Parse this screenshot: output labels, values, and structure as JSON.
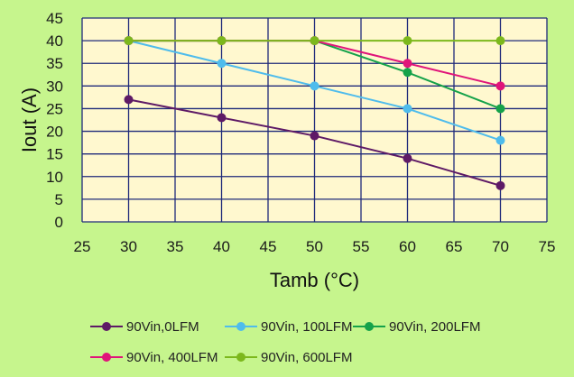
{
  "colors": {
    "background": "#c6f58d",
    "plot_area": "#fff8cf",
    "grid": "#1f2a7a"
  },
  "chart_data": {
    "type": "line",
    "xlabel": "Tamb (°C)",
    "ylabel": "Iout (A)",
    "xlim": [
      25,
      75
    ],
    "ylim": [
      0,
      45
    ],
    "xticks": [
      25,
      30,
      35,
      40,
      45,
      50,
      55,
      60,
      65,
      70,
      75
    ],
    "yticks": [
      0,
      5,
      10,
      15,
      20,
      25,
      30,
      35,
      40,
      45
    ],
    "grid": true,
    "legend_position": "bottom",
    "series": [
      {
        "name": "90Vin,0LFM",
        "color": "#5e1a66",
        "x": [
          30,
          40,
          50,
          60,
          70
        ],
        "y": [
          27,
          23,
          19,
          14,
          8
        ]
      },
      {
        "name": "90Vin, 100LFM",
        "color": "#4fbcec",
        "x": [
          30,
          40,
          50,
          60,
          70
        ],
        "y": [
          40,
          35,
          30,
          25,
          18
        ]
      },
      {
        "name": "90Vin, 200LFM",
        "color": "#15a24a",
        "x": [
          30,
          40,
          50,
          60,
          70
        ],
        "y": [
          40,
          40,
          40,
          33,
          25
        ]
      },
      {
        "name": "90Vin, 400LFM",
        "color": "#e0147a",
        "x": [
          30,
          40,
          50,
          60,
          70
        ],
        "y": [
          40,
          40,
          40,
          35,
          30
        ]
      },
      {
        "name": "90Vin, 600LFM",
        "color": "#7cb81c",
        "x": [
          30,
          40,
          50,
          60,
          70
        ],
        "y": [
          40,
          40,
          40,
          40,
          40
        ]
      }
    ]
  }
}
